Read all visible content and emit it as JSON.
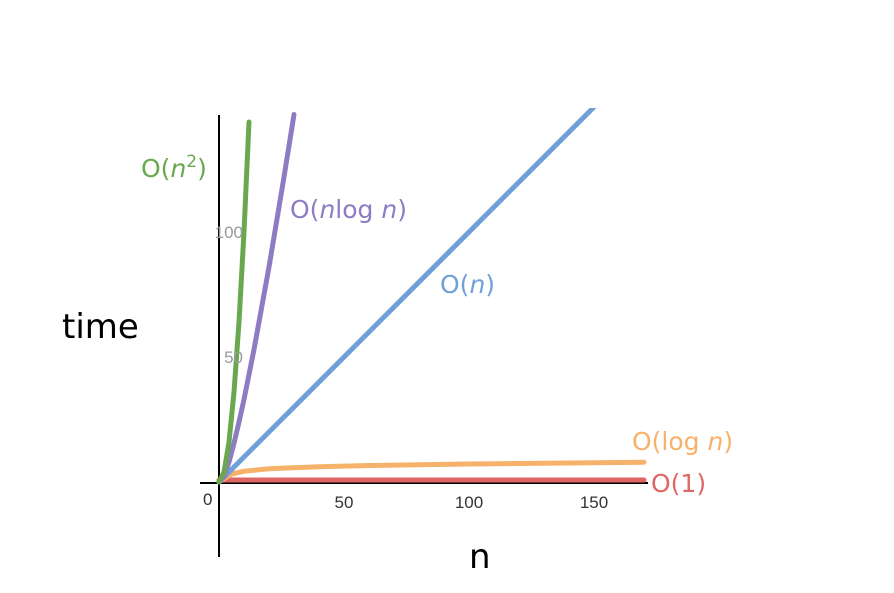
{
  "chart_data": {
    "type": "line",
    "title": "",
    "xlabel": "n",
    "ylabel": "time",
    "xlim": [
      0,
      170
    ],
    "ylim": [
      0,
      150
    ],
    "x_ticks": [
      {
        "value": 50,
        "label": "50"
      },
      {
        "value": 100,
        "label": "100"
      },
      {
        "value": 150,
        "label": "150"
      }
    ],
    "y_ticks": [
      {
        "value": 50,
        "label": "50"
      },
      {
        "value": 100,
        "label": "100"
      }
    ],
    "origin_label": "0",
    "grid": false,
    "series": [
      {
        "key": "o1",
        "label_parts": [
          {
            "t": "O(1)",
            "i": false
          }
        ],
        "color": "#e06666",
        "x": [
          0,
          170
        ],
        "y": [
          0.8,
          0.8
        ]
      },
      {
        "key": "ologn",
        "label_parts": [
          {
            "t": "O(log ",
            "i": false
          },
          {
            "t": "n",
            "i": true
          },
          {
            "t": ")",
            "i": false
          }
        ],
        "color": "#f6b26b",
        "x": [
          0,
          5,
          10,
          20,
          40,
          60,
          80,
          100,
          120,
          140,
          160,
          170
        ],
        "y": [
          0,
          3.2,
          4.3,
          5.3,
          6.1,
          6.6,
          6.9,
          7.2,
          7.4,
          7.6,
          7.8,
          7.9
        ]
      },
      {
        "key": "on",
        "label_parts": [
          {
            "t": "O(",
            "i": false
          },
          {
            "t": "n",
            "i": true
          },
          {
            "t": ")",
            "i": false
          }
        ],
        "color": "#6fa0d8",
        "x": [
          0,
          150
        ],
        "y": [
          0,
          150
        ]
      },
      {
        "key": "onlogn",
        "label_parts": [
          {
            "t": "O(",
            "i": false
          },
          {
            "t": "n",
            "i": true
          },
          {
            "t": "log ",
            "i": false
          },
          {
            "t": "n",
            "i": true
          },
          {
            "t": ")",
            "i": false
          }
        ],
        "color": "#8e7cc3",
        "x": [
          0,
          2,
          4,
          6,
          8,
          10,
          12,
          14,
          16,
          18,
          20,
          22,
          24,
          26,
          28,
          30
        ],
        "y": [
          0,
          2,
          8,
          15.5,
          24,
          33,
          43,
          53,
          64,
          75,
          86,
          98,
          110,
          122,
          134.5,
          147
        ]
      },
      {
        "key": "on2",
        "label_parts": [
          {
            "t": "O(",
            "i": false
          },
          {
            "t": "n",
            "i": true
          },
          {
            "t": "2",
            "i": false,
            "sup": true
          },
          {
            "t": ")",
            "i": false
          }
        ],
        "color": "#6aa84f",
        "x": [
          0,
          2,
          4,
          6,
          8,
          10,
          12
        ],
        "y": [
          0,
          4,
          16,
          36,
          64,
          100,
          144
        ]
      }
    ]
  }
}
